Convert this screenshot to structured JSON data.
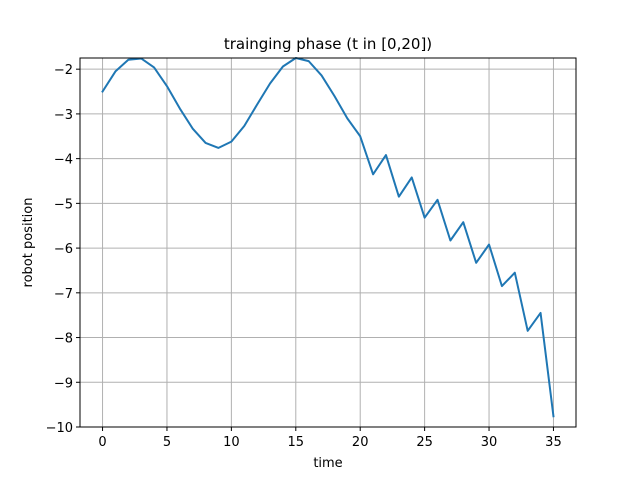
{
  "chart_data": {
    "type": "line",
    "title": "trainging phase (t in [0,20])",
    "xlabel": "time",
    "ylabel": "robot position",
    "xlim": [
      -1.75,
      36.75
    ],
    "ylim": [
      -10.0,
      -1.75
    ],
    "grid": true,
    "x_ticks": [
      0,
      5,
      10,
      15,
      20,
      25,
      30,
      35
    ],
    "x_tick_labels": [
      "0",
      "5",
      "10",
      "15",
      "20",
      "25",
      "30",
      "35"
    ],
    "y_ticks": [
      -2,
      -3,
      -4,
      -5,
      -6,
      -7,
      -8,
      -9,
      -10
    ],
    "y_tick_labels": [
      "−2",
      "−3",
      "−4",
      "−5",
      "−6",
      "−7",
      "−8",
      "−9",
      "−10"
    ],
    "line_color": "#1f77b4",
    "series": [
      {
        "x": [
          0,
          1,
          2,
          3,
          4,
          5,
          6,
          7,
          8,
          9,
          10,
          11,
          12,
          13,
          14,
          15,
          16,
          17,
          18,
          19,
          20,
          21,
          22,
          23,
          24,
          25,
          26,
          27,
          28,
          29,
          30,
          31,
          32,
          33,
          34,
          35
        ],
        "values": [
          -2.5,
          -2.05,
          -1.79,
          -1.76,
          -1.96,
          -2.38,
          -2.88,
          -3.33,
          -3.65,
          -3.76,
          -3.62,
          -3.27,
          -2.79,
          -2.32,
          -1.94,
          -1.75,
          -1.82,
          -2.14,
          -2.6,
          -3.1,
          -3.5,
          -4.35,
          -3.92,
          -4.85,
          -4.42,
          -5.32,
          -4.92,
          -5.83,
          -5.42,
          -6.33,
          -5.92,
          -6.85,
          -6.55,
          -7.85,
          -7.45,
          -9.76
        ]
      }
    ]
  }
}
